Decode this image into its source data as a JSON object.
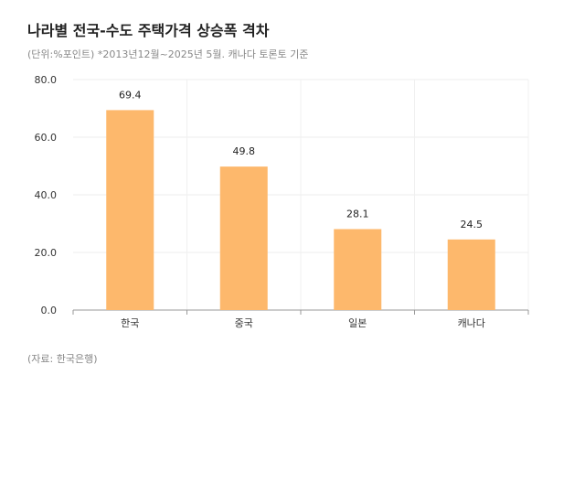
{
  "chart_data": {
    "type": "bar",
    "title": "나라별 전국-수도 주택가격 상승폭 격차",
    "subtitle": "(단위:%포인트) *2013년12월~2025년 5월. 캐나다 토론토 기준",
    "source": "(자료: 한국은행)",
    "categories": [
      "한국",
      "중국",
      "일본",
      "캐나다"
    ],
    "values": [
      69.4,
      49.8,
      28.1,
      24.5
    ],
    "value_labels": [
      "69.4",
      "49.8",
      "28.1",
      "24.5"
    ],
    "ylim": [
      0,
      80
    ],
    "yticks": [
      0,
      20,
      40,
      60,
      80
    ],
    "ytick_labels": [
      "0.0",
      "20.0",
      "40.0",
      "60.0",
      "80.0"
    ],
    "xlabel": "",
    "ylabel": "",
    "grid": true,
    "bar_color": "#FDB86C"
  }
}
